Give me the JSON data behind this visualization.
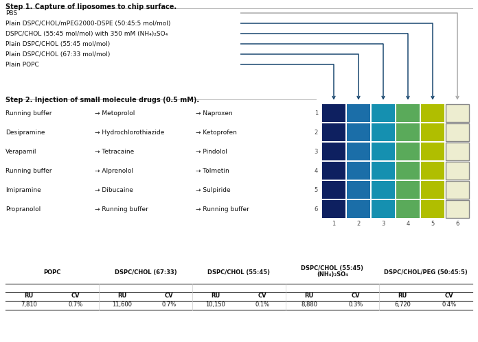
{
  "title_step1": "Step 1. Capture of liposomes to chip surface.",
  "title_step2": "Step 2. Injection of small molecule drugs (0.5 mM).",
  "liposomes": [
    "PBS",
    "Plain DSPC/CHOL/mPEG2000-DSPE (50:45:5 mol/mol)",
    "DSPC/CHOL (55:45 mol/mol) with 350 mM (NH₄)₂SO₄",
    "Plain DSPC/CHOL (55:45 mol/mol)",
    "Plain DSPC/CHOL (67:33 mol/mol)",
    "Plain POPC"
  ],
  "row_labels": [
    "1",
    "2",
    "3",
    "4",
    "5",
    "6"
  ],
  "col_labels": [
    "1",
    "2",
    "3",
    "4",
    "5",
    "6"
  ],
  "drugs_col1": [
    "Running buffer",
    "Desipramine",
    "Verapamil",
    "Running buffer",
    "Imipramine",
    "Propranolol"
  ],
  "drugs_col2": [
    "Metoprolol",
    "Hydrochlorothiazide",
    "Tetracaine",
    "Alprenolol",
    "Dibucaine",
    "Running buffer"
  ],
  "drugs_col3": [
    "Naproxen",
    "Ketoprofen",
    "Pindolol",
    "Tolmetin",
    "Sulpiride",
    "Running buffer"
  ],
  "grid_colors": [
    [
      "#0e2060",
      "#1b6ea8",
      "#1590b0",
      "#5aaa5a",
      "#b0be00",
      "#eded d0"
    ],
    [
      "#0e2060",
      "#1b6ea8",
      "#1590b0",
      "#5aaa5a",
      "#b0be00",
      "#ededd0"
    ],
    [
      "#0e2060",
      "#1b6ea8",
      "#1590b0",
      "#5aaa5a",
      "#b0be00",
      "#ededd0"
    ],
    [
      "#0e2060",
      "#1b6ea8",
      "#1590b0",
      "#5aaa5a",
      "#b0be00",
      "#ededd0"
    ],
    [
      "#0e2060",
      "#1b6ea8",
      "#1590b0",
      "#5aaa5a",
      "#b0be00",
      "#ededd0"
    ],
    [
      "#0e2060",
      "#1b6ea8",
      "#1590b0",
      "#5aaa5a",
      "#b0be00",
      "#ededd0"
    ]
  ],
  "grid_edgecolors": [
    [
      "none",
      "none",
      "none",
      "none",
      "none",
      "#888888"
    ],
    [
      "none",
      "none",
      "none",
      "none",
      "none",
      "#888888"
    ],
    [
      "none",
      "none",
      "none",
      "none",
      "none",
      "#888888"
    ],
    [
      "none",
      "none",
      "none",
      "none",
      "none",
      "#888888"
    ],
    [
      "none",
      "none",
      "none",
      "none",
      "none",
      "#888888"
    ],
    [
      "none",
      "none",
      "none",
      "none",
      "none",
      "#888888"
    ]
  ],
  "table_group_labels": [
    "POPC",
    "DSPC/CHOL (67:33)",
    "DSPC/CHOL (55:45)",
    "DSPC/CHOL (55:45)\n(NH₄)₂SO₄",
    "DSPC/CHOL/PEG (50:45:5)"
  ],
  "table_subheaders": [
    "RU",
    "CV",
    "RU",
    "CV",
    "RU",
    "CV",
    "RU",
    "CV",
    "RU",
    "CV"
  ],
  "table_values": [
    "7,810",
    "0.7%",
    "11,600",
    "0.7%",
    "10,150",
    "0.1%",
    "8,880",
    "0.3%",
    "6,720",
    "0.4%"
  ],
  "arrow_color_dark": "#1a4870",
  "arrow_color_gray": "#aaaaaa",
  "bg_color": "#ffffff",
  "font_size_main": 6.5,
  "font_size_step": 7.0,
  "font_size_table": 6.5
}
